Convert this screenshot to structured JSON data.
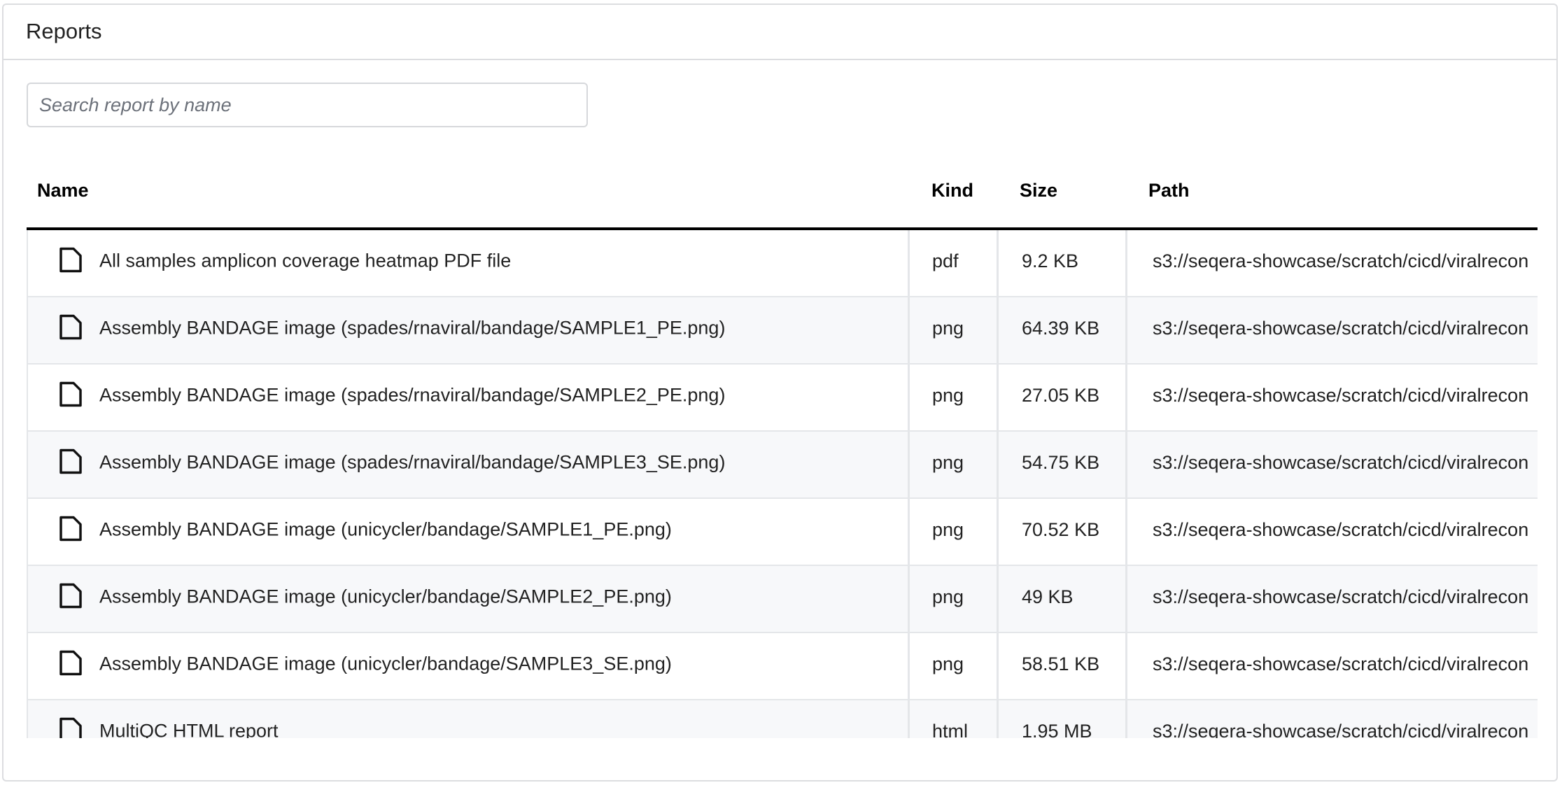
{
  "card": {
    "title": "Reports"
  },
  "search": {
    "placeholder": "Search report by name",
    "value": ""
  },
  "table": {
    "columns": [
      "Name",
      "Kind",
      "Size",
      "Path"
    ],
    "rows": [
      {
        "name": "All samples amplicon coverage heatmap PDF file",
        "kind": "pdf",
        "size": "9.2 KB",
        "path": "s3://seqera-showcase/scratch/cicd/viralrecon"
      },
      {
        "name": "Assembly BANDAGE image (spades/rnaviral/bandage/SAMPLE1_PE.png)",
        "kind": "png",
        "size": "64.39 KB",
        "path": "s3://seqera-showcase/scratch/cicd/viralrecon"
      },
      {
        "name": "Assembly BANDAGE image (spades/rnaviral/bandage/SAMPLE2_PE.png)",
        "kind": "png",
        "size": "27.05 KB",
        "path": "s3://seqera-showcase/scratch/cicd/viralrecon"
      },
      {
        "name": "Assembly BANDAGE image (spades/rnaviral/bandage/SAMPLE3_SE.png)",
        "kind": "png",
        "size": "54.75 KB",
        "path": "s3://seqera-showcase/scratch/cicd/viralrecon"
      },
      {
        "name": "Assembly BANDAGE image (unicycler/bandage/SAMPLE1_PE.png)",
        "kind": "png",
        "size": "70.52 KB",
        "path": "s3://seqera-showcase/scratch/cicd/viralrecon"
      },
      {
        "name": "Assembly BANDAGE image (unicycler/bandage/SAMPLE2_PE.png)",
        "kind": "png",
        "size": "49 KB",
        "path": "s3://seqera-showcase/scratch/cicd/viralrecon"
      },
      {
        "name": "Assembly BANDAGE image (unicycler/bandage/SAMPLE3_SE.png)",
        "kind": "png",
        "size": "58.51 KB",
        "path": "s3://seqera-showcase/scratch/cicd/viralrecon"
      },
      {
        "name": "MultiQC HTML report",
        "kind": "html",
        "size": "1.95 MB",
        "path": "s3://seqera-showcase/scratch/cicd/viralrecon"
      }
    ],
    "row_icon": "file-icon"
  }
}
